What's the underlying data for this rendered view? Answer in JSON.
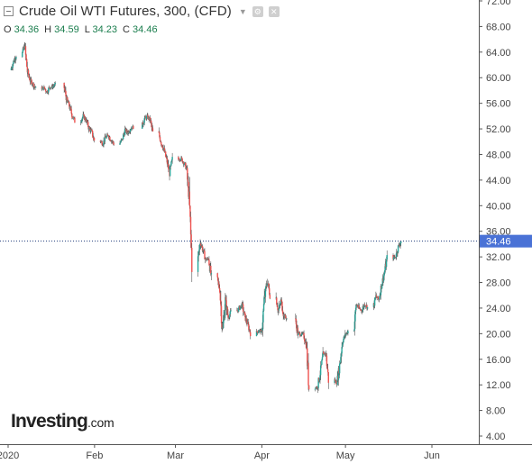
{
  "header": {
    "title": "Crude Oil WTI Futures, 300, (CFD)",
    "settings_icon": "gear-icon",
    "close_icon": "close-icon"
  },
  "ohlc": {
    "open_label": "O",
    "open": "34.36",
    "high_label": "H",
    "high": "34.59",
    "low_label": "L",
    "low": "34.23",
    "close_label": "C",
    "close": "34.46"
  },
  "logo": {
    "main": "Investing",
    "domain": ".com"
  },
  "colors": {
    "up": "#26a69a",
    "down": "#ef5350",
    "wick": "#555555",
    "price_line": "#1f3a7a",
    "price_tag": "#4a72d6",
    "axis": "#555555"
  },
  "chart_data": {
    "type": "candlestick",
    "y_ticks": [
      "4.00",
      "8.00",
      "12.00",
      "16.00",
      "20.00",
      "24.00",
      "28.00",
      "32.00",
      "36.00",
      "40.00",
      "44.00",
      "48.00",
      "52.00",
      "56.00",
      "60.00",
      "64.00",
      "68.00",
      "72.00"
    ],
    "ylim": [
      4,
      72
    ],
    "x_ticks": [
      "2020",
      "Feb",
      "Mar",
      "Apr",
      "May",
      "Jun"
    ],
    "current_price": "34.46",
    "price_series": [
      [
        "2020-01-02",
        61.2
      ],
      [
        "2020-01-03",
        62.5
      ],
      [
        "2020-01-06",
        63.5
      ],
      [
        "2020-01-07",
        65.0
      ],
      [
        "2020-01-08",
        61.0
      ],
      [
        "2020-01-09",
        59.6
      ],
      [
        "2020-01-10",
        59.0
      ],
      [
        "2020-01-13",
        58.3
      ],
      [
        "2020-01-14",
        58.4
      ],
      [
        "2020-01-15",
        57.8
      ],
      [
        "2020-01-16",
        58.5
      ],
      [
        "2020-01-17",
        58.6
      ],
      [
        "2020-01-21",
        58.9
      ],
      [
        "2020-01-22",
        56.7
      ],
      [
        "2020-01-23",
        55.6
      ],
      [
        "2020-01-24",
        54.2
      ],
      [
        "2020-01-27",
        53.2
      ],
      [
        "2020-01-28",
        54.0
      ],
      [
        "2020-01-29",
        53.4
      ],
      [
        "2020-01-30",
        52.2
      ],
      [
        "2020-01-31",
        51.6
      ],
      [
        "2020-02-03",
        50.2
      ],
      [
        "2020-02-04",
        49.7
      ],
      [
        "2020-02-05",
        50.6
      ],
      [
        "2020-02-06",
        51.0
      ],
      [
        "2020-02-07",
        50.3
      ],
      [
        "2020-02-10",
        49.7
      ],
      [
        "2020-02-11",
        50.3
      ],
      [
        "2020-02-12",
        51.8
      ],
      [
        "2020-02-13",
        51.4
      ],
      [
        "2020-02-14",
        52.1
      ],
      [
        "2020-02-18",
        52.3
      ],
      [
        "2020-02-19",
        53.6
      ],
      [
        "2020-02-20",
        53.9
      ],
      [
        "2020-02-21",
        53.4
      ],
      [
        "2020-02-24",
        51.4
      ],
      [
        "2020-02-25",
        49.9
      ],
      [
        "2020-02-26",
        48.7
      ],
      [
        "2020-02-27",
        47.0
      ],
      [
        "2020-02-28",
        45.1
      ],
      [
        "2020-03-02",
        47.2
      ],
      [
        "2020-03-03",
        47.4
      ],
      [
        "2020-03-04",
        46.8
      ],
      [
        "2020-03-05",
        45.9
      ],
      [
        "2020-03-06",
        41.3
      ],
      [
        "2020-03-09",
        31.1
      ],
      [
        "2020-03-10",
        34.4
      ],
      [
        "2020-03-11",
        33.0
      ],
      [
        "2020-03-12",
        31.5
      ],
      [
        "2020-03-13",
        31.7
      ],
      [
        "2020-03-16",
        28.7
      ],
      [
        "2020-03-17",
        26.9
      ],
      [
        "2020-03-18",
        20.4
      ],
      [
        "2020-03-19",
        25.2
      ],
      [
        "2020-03-20",
        22.6
      ],
      [
        "2020-03-23",
        23.4
      ],
      [
        "2020-03-24",
        24.0
      ],
      [
        "2020-03-25",
        24.5
      ],
      [
        "2020-03-26",
        22.6
      ],
      [
        "2020-03-27",
        21.5
      ],
      [
        "2020-03-30",
        20.1
      ],
      [
        "2020-03-31",
        20.5
      ],
      [
        "2020-04-01",
        20.3
      ],
      [
        "2020-04-02",
        25.3
      ],
      [
        "2020-04-03",
        28.3
      ],
      [
        "2020-04-06",
        26.1
      ],
      [
        "2020-04-07",
        23.6
      ],
      [
        "2020-04-08",
        25.1
      ],
      [
        "2020-04-09",
        22.8
      ],
      [
        "2020-04-13",
        22.4
      ],
      [
        "2020-04-14",
        20.1
      ],
      [
        "2020-04-15",
        19.9
      ],
      [
        "2020-04-16",
        19.9
      ],
      [
        "2020-04-17",
        18.3
      ],
      [
        "2020-04-20",
        11.6
      ],
      [
        "2020-04-21",
        11.6
      ],
      [
        "2020-04-22",
        13.8
      ],
      [
        "2020-04-23",
        16.5
      ],
      [
        "2020-04-24",
        17.0
      ],
      [
        "2020-04-27",
        12.8
      ],
      [
        "2020-04-28",
        12.3
      ],
      [
        "2020-04-29",
        15.1
      ],
      [
        "2020-04-30",
        18.8
      ],
      [
        "2020-05-01",
        19.8
      ],
      [
        "2020-05-04",
        20.4
      ],
      [
        "2020-05-05",
        24.6
      ],
      [
        "2020-05-06",
        23.9
      ],
      [
        "2020-05-07",
        23.6
      ],
      [
        "2020-05-08",
        24.7
      ],
      [
        "2020-05-11",
        24.1
      ],
      [
        "2020-05-12",
        25.8
      ],
      [
        "2020-05-13",
        25.3
      ],
      [
        "2020-05-14",
        27.6
      ],
      [
        "2020-05-15",
        29.4
      ],
      [
        "2020-05-18",
        31.8
      ],
      [
        "2020-05-19",
        32.0
      ],
      [
        "2020-05-20",
        33.5
      ],
      [
        "2020-05-21",
        34.46
      ]
    ]
  }
}
